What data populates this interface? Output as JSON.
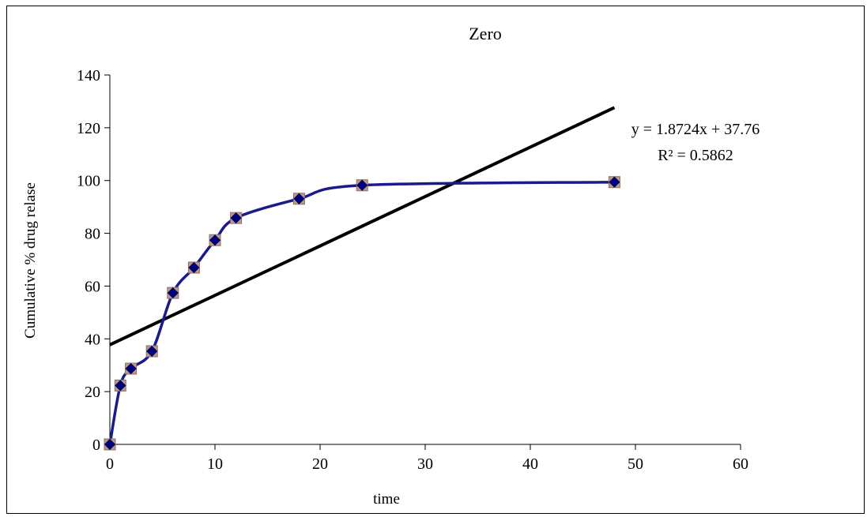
{
  "chart_data": {
    "type": "scatter",
    "title": "Zero",
    "xlabel": "time",
    "ylabel": "Cumulative % drug relase",
    "xlim": [
      0,
      60
    ],
    "ylim": [
      0,
      140
    ],
    "x_ticks": [
      0,
      10,
      20,
      30,
      40,
      50,
      60
    ],
    "y_ticks": [
      0,
      20,
      40,
      60,
      80,
      100,
      120,
      140
    ],
    "grid": false,
    "series": [
      {
        "style": "smoothed line with markers",
        "line_color": "#1a1a8c",
        "marker_color": "#000080",
        "x": [
          0,
          1,
          2,
          4,
          6,
          8,
          10,
          12,
          18,
          24,
          48
        ],
        "y": [
          0,
          22.3,
          28.7,
          35.3,
          57.4,
          67,
          77.4,
          85.8,
          93.1,
          98.2,
          99.4
        ]
      }
    ],
    "trendline": {
      "type": "linear",
      "slope": 1.8724,
      "intercept": 37.76,
      "x_range": [
        0,
        48
      ],
      "color": "#000000",
      "equation_label": "y = 1.8724x + 37.76",
      "r2_label": "R² = 0.5862"
    }
  }
}
